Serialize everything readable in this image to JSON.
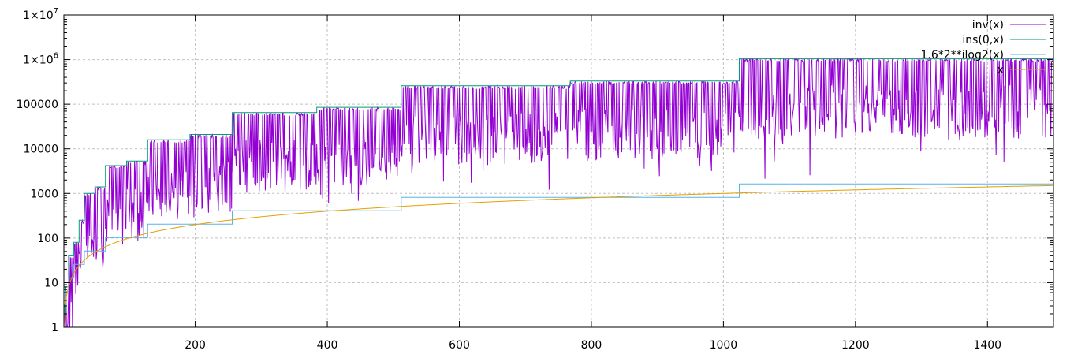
{
  "chart_data": {
    "type": "line",
    "title": "",
    "xlabel": "",
    "ylabel": "",
    "xlim": [
      1,
      1500
    ],
    "ylim": [
      1,
      10000000
    ],
    "yscale": "log",
    "grid": true,
    "legend_position": "top-right",
    "xticks": [
      {
        "value": 200,
        "label": "200"
      },
      {
        "value": 400,
        "label": "400"
      },
      {
        "value": 600,
        "label": "600"
      },
      {
        "value": 800,
        "label": "800"
      },
      {
        "value": 1000,
        "label": "1000"
      },
      {
        "value": 1200,
        "label": "1200"
      },
      {
        "value": 1400,
        "label": "1400"
      }
    ],
    "yticks": [
      {
        "value": 1,
        "label": "1",
        "sup": ""
      },
      {
        "value": 10,
        "label": "10",
        "sup": ""
      },
      {
        "value": 100,
        "label": "100",
        "sup": ""
      },
      {
        "value": 1000,
        "label": "1000",
        "sup": ""
      },
      {
        "value": 10000,
        "label": "10000",
        "sup": ""
      },
      {
        "value": 100000,
        "label": "100000",
        "sup": ""
      },
      {
        "value": 1000000,
        "label": "1×10",
        "sup": "6"
      },
      {
        "value": 10000000,
        "label": "1×10",
        "sup": "7"
      }
    ],
    "series": [
      {
        "name": "inv(x)",
        "color": "#9400d3",
        "kind": "noisy-band",
        "note_points": [
          [
            8,
            40
          ],
          [
            32,
            300
          ],
          [
            64,
            1200
          ],
          [
            128,
            4000
          ],
          [
            256,
            15000
          ],
          [
            512,
            60000
          ],
          [
            1024,
            250000
          ],
          [
            1500,
            300000
          ]
        ]
      },
      {
        "name": "ins(0,x)",
        "color": "#009e73",
        "kind": "step",
        "steps": [
          [
            1,
            2
          ],
          [
            4,
            8
          ],
          [
            8,
            40
          ],
          [
            16,
            80
          ],
          [
            24,
            250
          ],
          [
            32,
            1000
          ],
          [
            48,
            1400
          ],
          [
            64,
            4200
          ],
          [
            96,
            5300
          ],
          [
            128,
            16000
          ],
          [
            192,
            21000
          ],
          [
            256,
            65000
          ],
          [
            384,
            85000
          ],
          [
            512,
            260000
          ],
          [
            768,
            330000
          ],
          [
            1024,
            1050000
          ]
        ],
        "x_end": 1500
      },
      {
        "name": "1.6*2**ilog2(x)",
        "color": "#56b4e9",
        "kind": "step",
        "steps": [
          [
            1,
            1.6
          ],
          [
            2,
            3.2
          ],
          [
            4,
            6.4
          ],
          [
            8,
            12.8
          ],
          [
            16,
            25.6
          ],
          [
            32,
            51.2
          ],
          [
            64,
            102.4
          ],
          [
            128,
            204.8
          ],
          [
            256,
            409.6
          ],
          [
            512,
            819.2
          ],
          [
            1024,
            1638.4
          ]
        ],
        "x_end": 1500
      },
      {
        "name": "x",
        "color": "#e69f00",
        "kind": "function",
        "function": "y=x",
        "x_range": [
          1,
          1500
        ]
      }
    ]
  }
}
